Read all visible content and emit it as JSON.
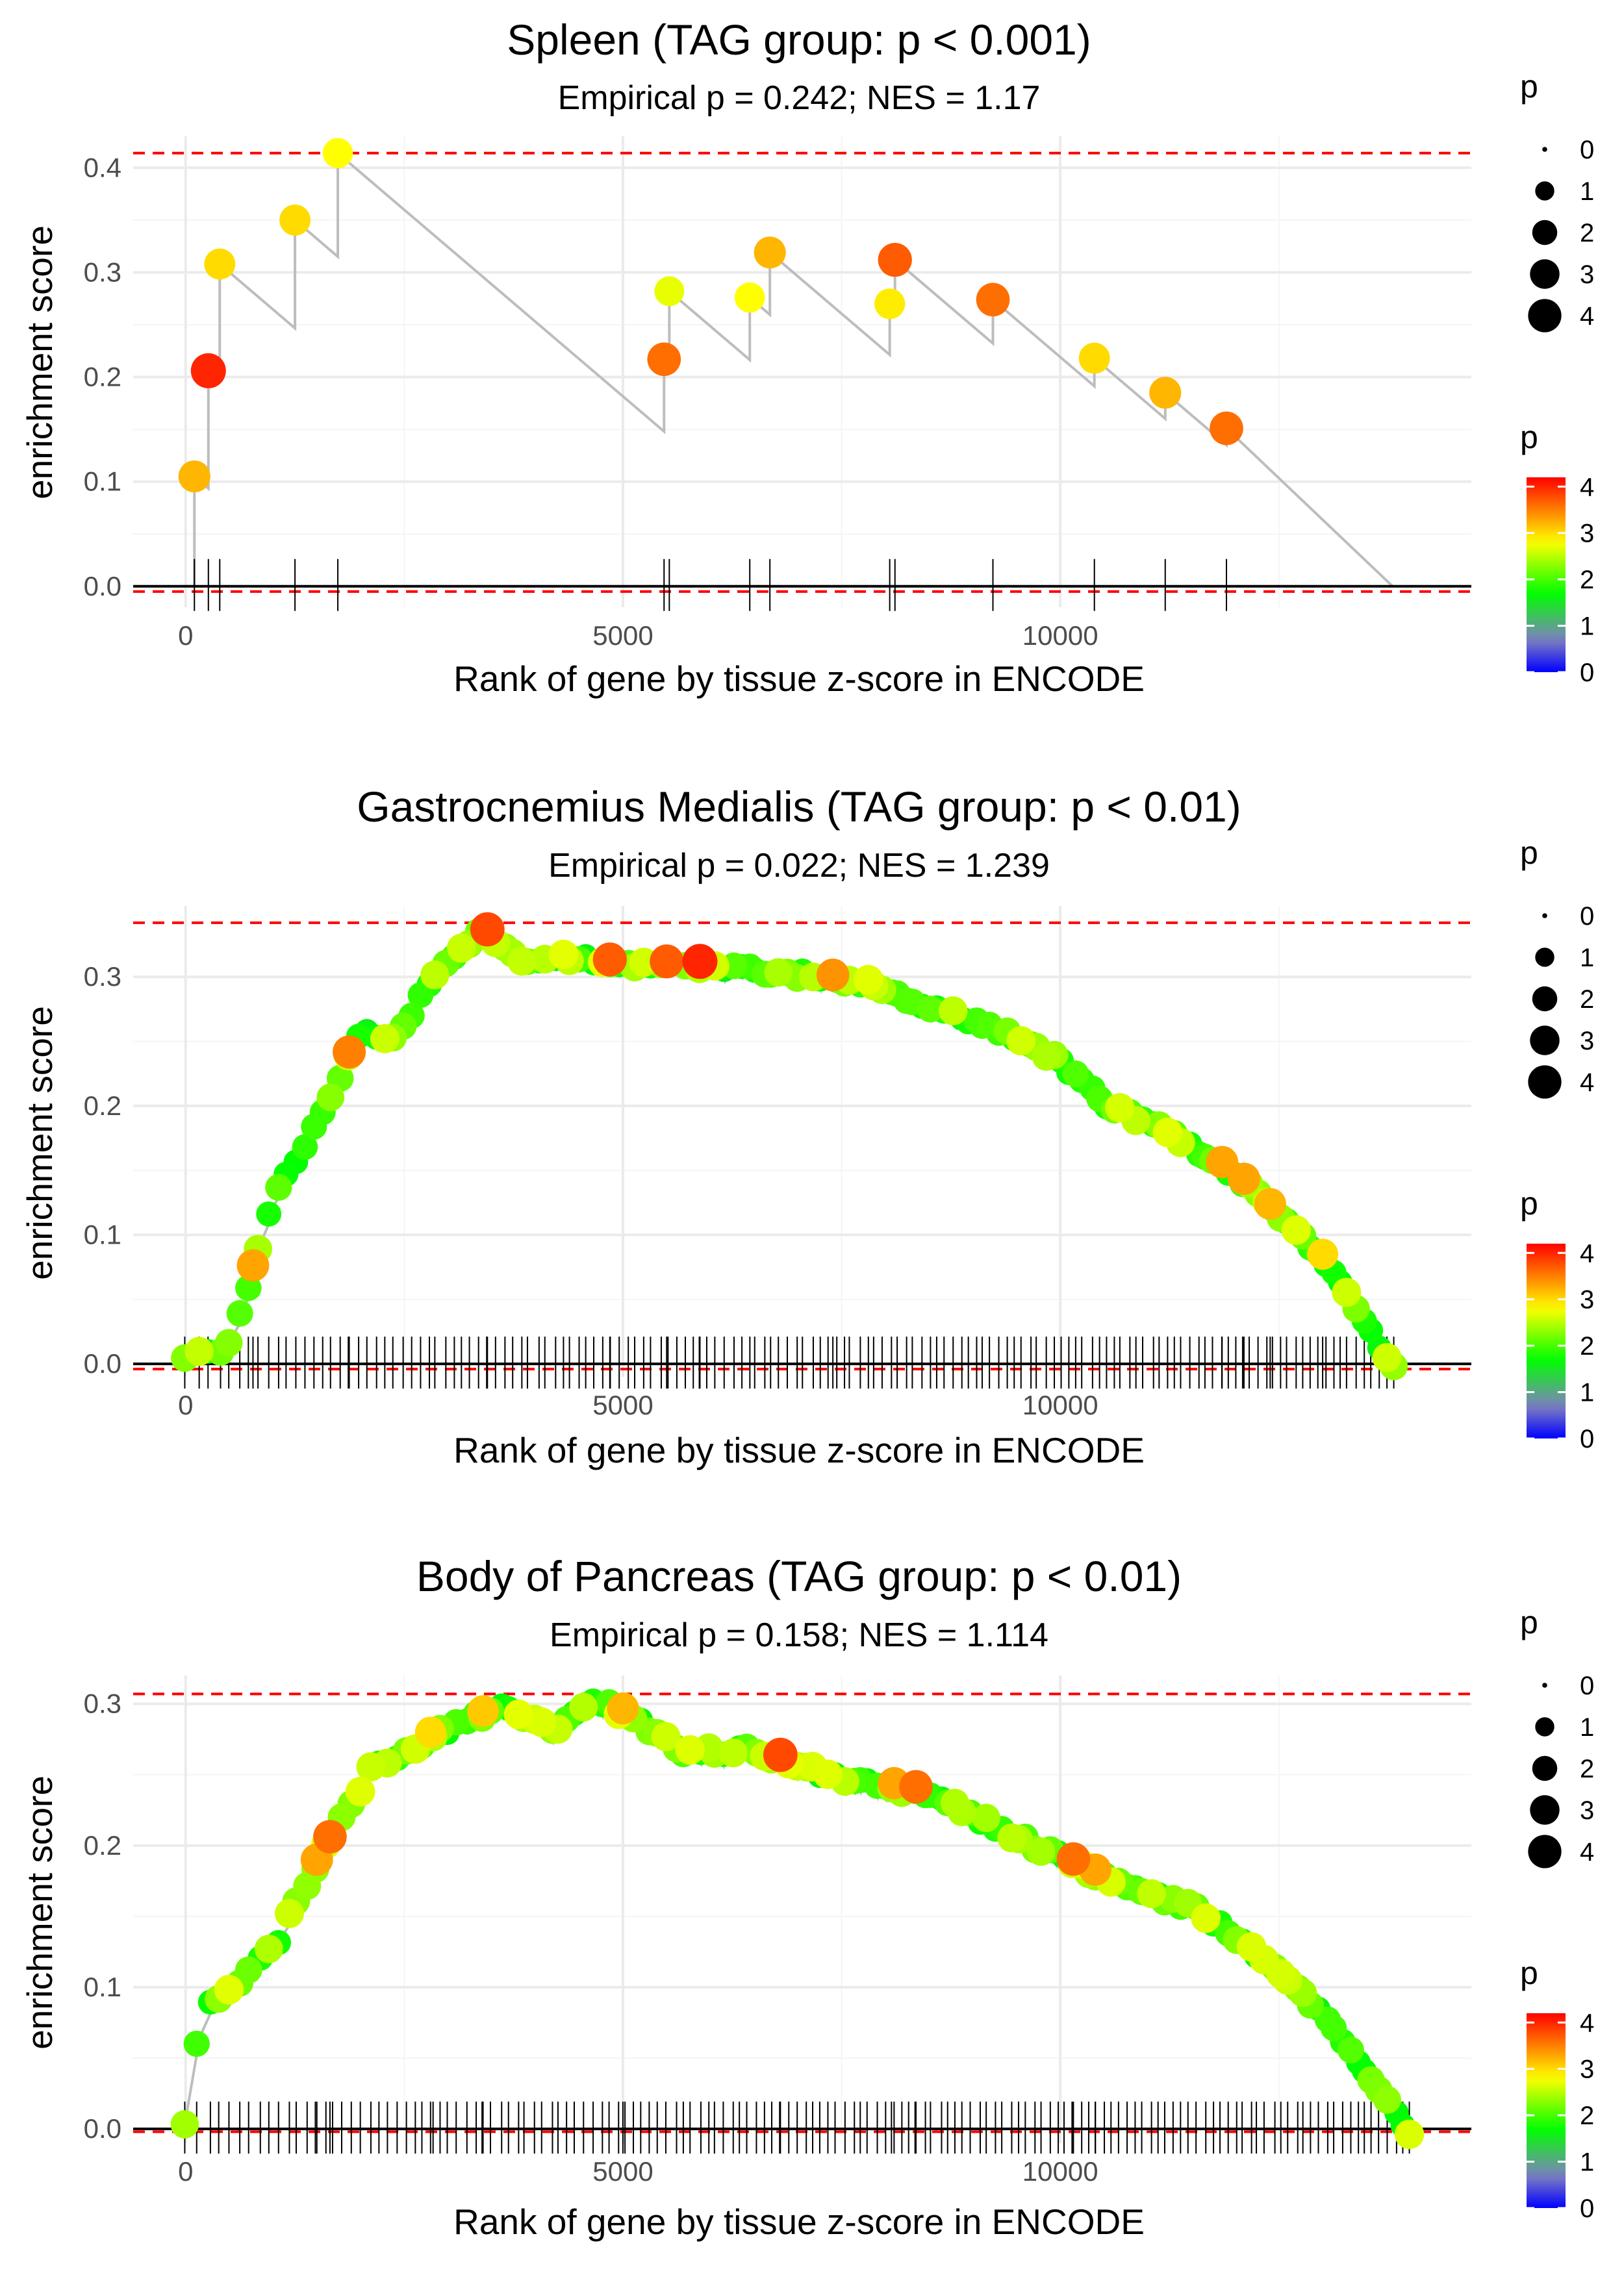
{
  "figure": {
    "shared": {
      "xlabel": "Rank of gene by tissue z-score in ENCODE",
      "ylabel": "enrichment score",
      "x_ticks": [
        0,
        5000,
        10000
      ],
      "x_tick_labels": [
        "0",
        "5000",
        "10000"
      ],
      "legend_size_title": "p",
      "legend_size_labels": [
        "0",
        "1",
        "2",
        "3",
        "4"
      ],
      "legend_color_title": "p",
      "legend_color_labels": [
        "0",
        "1",
        "2",
        "3",
        "4"
      ],
      "colors": {
        "gradient": [
          "#0000ff",
          "#8080c0",
          "#00ff00",
          "#ffff00",
          "#ff8000",
          "#ff0000"
        ],
        "line": "#bdbdbd",
        "hline": "#ff0000",
        "grid": "#ebebeb"
      }
    }
  },
  "chart_data": [
    {
      "type": "scatter",
      "title": "Spleen (TAG group: p < 0.001)",
      "subtitle": "Empirical p = 0.242; NES = 1.17",
      "xlabel": "Rank of gene by tissue z-score in ENCODE",
      "ylabel": "enrichment score",
      "xlim": [
        -600,
        14700
      ],
      "ylim": [
        -0.02,
        0.43
      ],
      "y_ticks": [
        0.0,
        0.1,
        0.2,
        0.3,
        0.4
      ],
      "y_tick_labels": [
        "0.0",
        "0.1",
        "0.2",
        "0.3",
        "0.4"
      ],
      "max_es": 0.414,
      "min_es": -0.005,
      "n_genes": 13800,
      "points": [
        {
          "x": 100,
          "y": 0.105,
          "p": 3.2
        },
        {
          "x": 260,
          "y": 0.206,
          "p": 4.0
        },
        {
          "x": 390,
          "y": 0.308,
          "p": 3.0
        },
        {
          "x": 1250,
          "y": 0.35,
          "p": 3.0
        },
        {
          "x": 1740,
          "y": 0.414,
          "p": 2.8
        },
        {
          "x": 5470,
          "y": 0.217,
          "p": 3.6
        },
        {
          "x": 5530,
          "y": 0.282,
          "p": 2.7
        },
        {
          "x": 6450,
          "y": 0.276,
          "p": 2.8
        },
        {
          "x": 6680,
          "y": 0.319,
          "p": 3.2
        },
        {
          "x": 8050,
          "y": 0.27,
          "p": 2.9
        },
        {
          "x": 8110,
          "y": 0.312,
          "p": 3.7
        },
        {
          "x": 9230,
          "y": 0.274,
          "p": 3.6
        },
        {
          "x": 10390,
          "y": 0.218,
          "p": 3.0
        },
        {
          "x": 11200,
          "y": 0.185,
          "p": 3.2
        },
        {
          "x": 11900,
          "y": 0.151,
          "p": 3.6
        }
      ],
      "legend": "right"
    },
    {
      "type": "scatter",
      "title": "Gastrocnemius Medialis (TAG group: p < 0.01)",
      "subtitle": "Empirical p = 0.022; NES = 1.239",
      "xlabel": "Rank of gene by tissue z-score in ENCODE",
      "ylabel": "enrichment score",
      "xlim": [
        -600,
        14700
      ],
      "ylim": [
        -0.01,
        0.355
      ],
      "y_ticks": [
        0.0,
        0.1,
        0.2,
        0.3
      ],
      "y_tick_labels": [
        "0.0",
        "0.1",
        "0.2",
        "0.3"
      ],
      "max_es": 0.342,
      "min_es": -0.004,
      "n_genes": 13800,
      "legend": "right"
    },
    {
      "type": "scatter",
      "title": "Body of Pancreas (TAG group: p < 0.01)",
      "subtitle": "Empirical p = 0.158; NES = 1.114",
      "xlabel": "Rank of gene by tissue z-score in ENCODE",
      "ylabel": "enrichment score",
      "xlim": [
        -600,
        14700
      ],
      "ylim": [
        -0.01,
        0.32
      ],
      "y_ticks": [
        0.0,
        0.1,
        0.2,
        0.3
      ],
      "y_tick_labels": [
        "0.0",
        "0.1",
        "0.2",
        "0.3"
      ],
      "max_es": 0.307,
      "min_es": -0.002,
      "n_genes": 13800,
      "legend": "right"
    }
  ]
}
